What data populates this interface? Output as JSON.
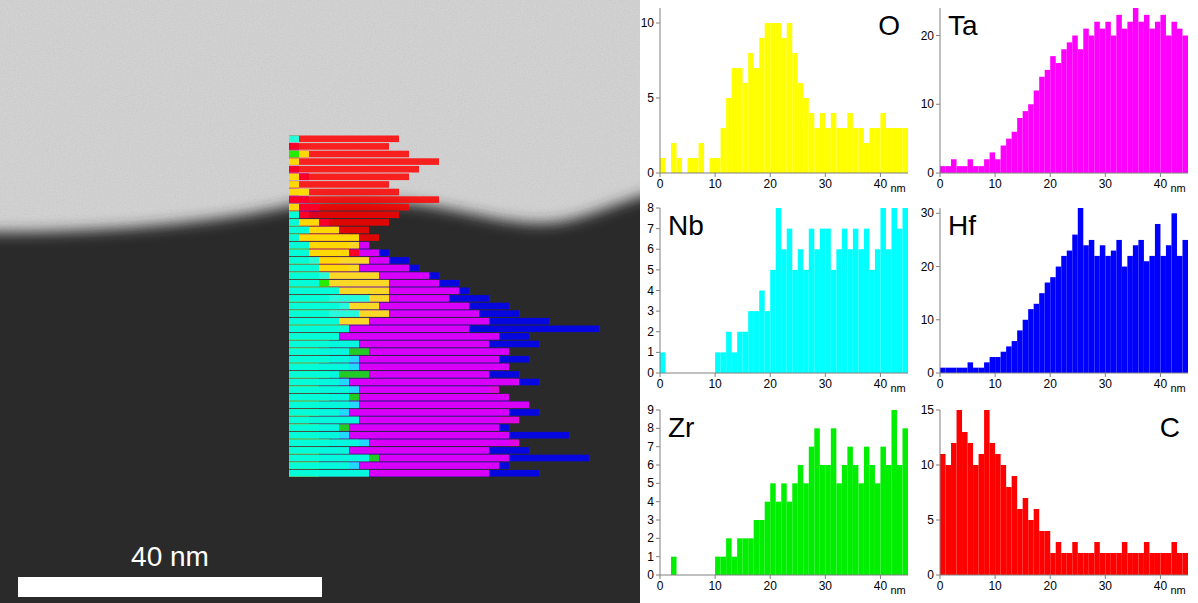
{
  "scale_bar_label": "40 nm",
  "chart_data": [
    {
      "type": "histogram",
      "title": "O",
      "color": "#ffff00",
      "xlabel": "nm",
      "bins": [
        0,
        1,
        2,
        3,
        4,
        5,
        6,
        7,
        8,
        9,
        10,
        11,
        12,
        13,
        14,
        15,
        16,
        17,
        18,
        19,
        20,
        21,
        22,
        23,
        24,
        25,
        26,
        27,
        28,
        29,
        30,
        31,
        32,
        33,
        34,
        35,
        36,
        37,
        38,
        39,
        40,
        41,
        42,
        43,
        44,
        45
      ],
      "values": [
        1,
        0,
        2,
        1,
        0,
        1,
        1,
        2,
        0,
        1,
        1,
        3,
        5,
        7,
        7,
        6,
        8,
        7,
        9,
        10,
        10,
        10,
        9,
        10,
        8,
        6,
        5,
        4,
        3,
        4,
        3,
        4,
        3,
        3,
        4,
        3,
        3,
        2,
        3,
        3,
        4,
        3,
        3,
        3,
        3
      ],
      "xlim": [
        0,
        45
      ],
      "xticks": [
        0,
        10,
        20,
        30,
        40
      ],
      "ylim": [
        0,
        11
      ],
      "yticks": [
        0,
        5,
        10
      ]
    },
    {
      "type": "histogram",
      "title": "Ta",
      "color": "#ff00ff",
      "xlabel": "nm",
      "bins": [
        0,
        1,
        2,
        3,
        4,
        5,
        6,
        7,
        8,
        9,
        10,
        11,
        12,
        13,
        14,
        15,
        16,
        17,
        18,
        19,
        20,
        21,
        22,
        23,
        24,
        25,
        26,
        27,
        28,
        29,
        30,
        31,
        32,
        33,
        34,
        35,
        36,
        37,
        38,
        39,
        40,
        41,
        42,
        43,
        44,
        45
      ],
      "values": [
        1,
        1,
        2,
        1,
        1,
        2,
        1,
        1,
        2,
        3,
        2,
        4,
        5,
        6,
        8,
        9,
        10,
        12,
        14,
        15,
        17,
        16,
        18,
        19,
        20,
        18,
        21,
        20,
        22,
        21,
        22,
        20,
        23,
        21,
        22,
        24,
        22,
        23,
        21,
        22,
        23,
        20,
        22,
        21,
        20
      ],
      "xlim": [
        0,
        45
      ],
      "xticks": [
        0,
        10,
        20,
        30,
        40
      ],
      "ylim": [
        0,
        24
      ],
      "yticks": [
        0,
        10,
        20
      ]
    },
    {
      "type": "histogram",
      "title": "Nb",
      "color": "#00ffff",
      "xlabel": "nm",
      "bins": [
        0,
        1,
        2,
        3,
        4,
        5,
        6,
        7,
        8,
        9,
        10,
        11,
        12,
        13,
        14,
        15,
        16,
        17,
        18,
        19,
        20,
        21,
        22,
        23,
        24,
        25,
        26,
        27,
        28,
        29,
        30,
        31,
        32,
        33,
        34,
        35,
        36,
        37,
        38,
        39,
        40,
        41,
        42,
        43,
        44,
        45
      ],
      "values": [
        1,
        0,
        0,
        0,
        0,
        0,
        0,
        0,
        0,
        0,
        1,
        1,
        2,
        1,
        2,
        2,
        3,
        3,
        4,
        3,
        5,
        8,
        6,
        7,
        5,
        6,
        5,
        7,
        6,
        7,
        7,
        5,
        6,
        7,
        6,
        7,
        6,
        7,
        5,
        6,
        8,
        6,
        8,
        7,
        8
      ],
      "xlim": [
        0,
        45
      ],
      "xticks": [
        0,
        10,
        20,
        30,
        40
      ],
      "ylim": [
        0,
        8
      ],
      "yticks": [
        0,
        1,
        2,
        3,
        4,
        5,
        6,
        7,
        8
      ]
    },
    {
      "type": "histogram",
      "title": "Hf",
      "color": "#0000ff",
      "xlabel": "nm",
      "bins": [
        0,
        1,
        2,
        3,
        4,
        5,
        6,
        7,
        8,
        9,
        10,
        11,
        12,
        13,
        14,
        15,
        16,
        17,
        18,
        19,
        20,
        21,
        22,
        23,
        24,
        25,
        26,
        27,
        28,
        29,
        30,
        31,
        32,
        33,
        34,
        35,
        36,
        37,
        38,
        39,
        40,
        41,
        42,
        43,
        44,
        45
      ],
      "values": [
        1,
        1,
        1,
        1,
        1,
        2,
        1,
        1,
        2,
        3,
        3,
        4,
        5,
        6,
        8,
        10,
        12,
        13,
        15,
        17,
        18,
        20,
        22,
        23,
        26,
        31,
        24,
        25,
        22,
        24,
        22,
        23,
        25,
        20,
        22,
        24,
        25,
        21,
        22,
        28,
        22,
        24,
        30,
        22,
        25
      ],
      "xlim": [
        0,
        45
      ],
      "xticks": [
        0,
        10,
        20,
        30,
        40
      ],
      "ylim": [
        0,
        31
      ],
      "yticks": [
        0,
        10,
        20,
        30
      ]
    },
    {
      "type": "histogram",
      "title": "Zr",
      "color": "#00ee00",
      "xlabel": "nm",
      "bins": [
        0,
        1,
        2,
        3,
        4,
        5,
        6,
        7,
        8,
        9,
        10,
        11,
        12,
        13,
        14,
        15,
        16,
        17,
        18,
        19,
        20,
        21,
        22,
        23,
        24,
        25,
        26,
        27,
        28,
        29,
        30,
        31,
        32,
        33,
        34,
        35,
        36,
        37,
        38,
        39,
        40,
        41,
        42,
        43,
        44,
        45
      ],
      "values": [
        0,
        0,
        1,
        0,
        0,
        0,
        0,
        0,
        0,
        0,
        1,
        1,
        2,
        1,
        2,
        2,
        2,
        3,
        3,
        4,
        5,
        4,
        5,
        4,
        5,
        6,
        5,
        7,
        8,
        6,
        6,
        8,
        5,
        6,
        7,
        6,
        5,
        7,
        6,
        5,
        7,
        6,
        9,
        6,
        8
      ],
      "xlim": [
        0,
        45
      ],
      "xticks": [
        0,
        10,
        20,
        30,
        40
      ],
      "ylim": [
        0,
        9
      ],
      "yticks": [
        0,
        1,
        2,
        3,
        4,
        5,
        6,
        7,
        8,
        9
      ]
    },
    {
      "type": "histogram",
      "title": "C",
      "color": "#ff0000",
      "xlabel": "nm",
      "bins": [
        0,
        1,
        2,
        3,
        4,
        5,
        6,
        7,
        8,
        9,
        10,
        11,
        12,
        13,
        14,
        15,
        16,
        17,
        18,
        19,
        20,
        21,
        22,
        23,
        24,
        25,
        26,
        27,
        28,
        29,
        30,
        31,
        32,
        33,
        34,
        35,
        36,
        37,
        38,
        39,
        40,
        41,
        42,
        43,
        44,
        45
      ],
      "values": [
        11,
        10,
        12,
        15,
        13,
        12,
        10,
        11,
        15,
        12,
        11,
        10,
        8,
        9,
        6,
        7,
        5,
        6,
        4,
        4,
        2,
        3,
        2,
        2,
        3,
        2,
        2,
        2,
        3,
        2,
        2,
        2,
        2,
        3,
        2,
        2,
        2,
        3,
        2,
        2,
        2,
        2,
        3,
        2,
        2
      ],
      "xlim": [
        0,
        45
      ],
      "xticks": [
        0,
        10,
        20,
        30,
        40
      ],
      "ylim": [
        0,
        15
      ],
      "yticks": [
        0,
        5,
        10,
        15
      ]
    }
  ]
}
